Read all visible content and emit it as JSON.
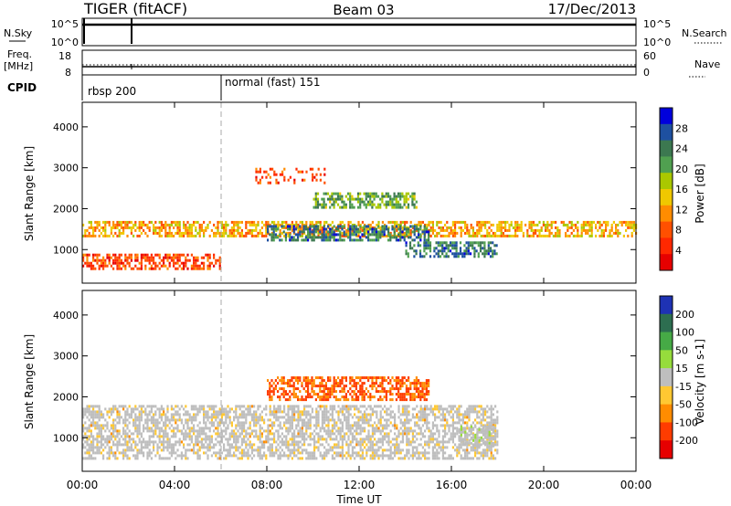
{
  "header": {
    "station": "TIGER (fitACF)",
    "beam": "Beam 03",
    "date": "17/Dec/2013"
  },
  "strips": {
    "nsky_label": "N.Sky",
    "nsky_ticks": [
      "10^5",
      "10^0"
    ],
    "nsearch_label": "N.Search",
    "nsearch_ticks": [
      "10^5",
      "10^0"
    ],
    "freq_label": "Freq.",
    "freq_unit": "[MHz]",
    "freq_ticks": [
      "18",
      "8"
    ],
    "nave_label": "Nave",
    "nave_ticks": [
      "60",
      "0"
    ],
    "cpid_label": "CPID",
    "cpid_segments": [
      {
        "label": "rbsp 200",
        "start_hour": 0
      },
      {
        "label": "normal (fast) 151",
        "start_hour": 6
      }
    ]
  },
  "chart_data": [
    {
      "type": "heatmap",
      "parameter": "Power",
      "xlabel": "",
      "ylabel": "Slant Range [km]",
      "xlim": [
        0,
        24
      ],
      "ylim": [
        180,
        4600
      ],
      "y_ticks": [
        "1000",
        "2000",
        "3000",
        "4000"
      ],
      "colorbar_label": "Power [dB]",
      "colorbar_ticks": [
        "28",
        "24",
        "20",
        "16",
        "12",
        "8",
        "4"
      ],
      "colorbar_colors": [
        "#0000dc",
        "#1e50a0",
        "#3c7850",
        "#50a050",
        "#aac800",
        "#f0c800",
        "#ff8c00",
        "#ff5000",
        "#ff2800",
        "#e60000"
      ],
      "cpid_change_hour": 6,
      "features": [
        {
          "name": "main band",
          "hours": [
            0,
            24
          ],
          "range_km": [
            1300,
            1700
          ],
          "power_db": 14
        },
        {
          "name": "strong echoes",
          "hours": [
            8,
            15
          ],
          "range_km": [
            1200,
            1600
          ],
          "power_db": 26
        },
        {
          "name": "upper layer",
          "hours": [
            10,
            14.5
          ],
          "range_km": [
            2000,
            2400
          ],
          "power_db": 22
        },
        {
          "name": "near-range patch",
          "hours": [
            14,
            18
          ],
          "range_km": [
            800,
            1200
          ],
          "power_db": 26
        },
        {
          "name": "sparse upper echoes",
          "hours": [
            7.5,
            10.5
          ],
          "range_km": [
            2600,
            3000
          ],
          "power_db": 8
        },
        {
          "name": "low range band",
          "hours": [
            0,
            6
          ],
          "range_km": [
            500,
            900
          ],
          "power_db": 8
        }
      ]
    },
    {
      "type": "heatmap",
      "parameter": "Velocity",
      "xlabel": "Time UT",
      "ylabel": "Slant Range [km]",
      "xlim": [
        0,
        24
      ],
      "ylim": [
        180,
        4600
      ],
      "x_ticks": [
        "00:00",
        "04:00",
        "08:00",
        "12:00",
        "16:00",
        "20:00",
        "00:00"
      ],
      "y_ticks": [
        "1000",
        "2000",
        "3000",
        "4000"
      ],
      "colorbar_label": "Velocity [m s-1]",
      "colorbar_ticks": [
        "200",
        "100",
        "50",
        "15",
        "-15",
        "-50",
        "-100",
        "-200"
      ],
      "colorbar_colors": [
        "#1e32b4",
        "#2d6e50",
        "#46aa46",
        "#96dc3c",
        "#bebebe",
        "#ffc832",
        "#ff8c00",
        "#ff3c00",
        "#e60000"
      ],
      "cpid_change_hour": 6,
      "features": [
        {
          "name": "ground scatter",
          "hours": [
            0,
            18
          ],
          "range_km": [
            500,
            1800
          ],
          "velocity": 0
        },
        {
          "name": "positive velocity patch",
          "hours": [
            16.3,
            17.8
          ],
          "range_km": [
            800,
            1300
          ],
          "velocity": 60
        },
        {
          "name": "ionospheric scatter",
          "hours": [
            8,
            15
          ],
          "range_km": [
            1900,
            2500
          ],
          "velocity": -80
        }
      ]
    }
  ]
}
